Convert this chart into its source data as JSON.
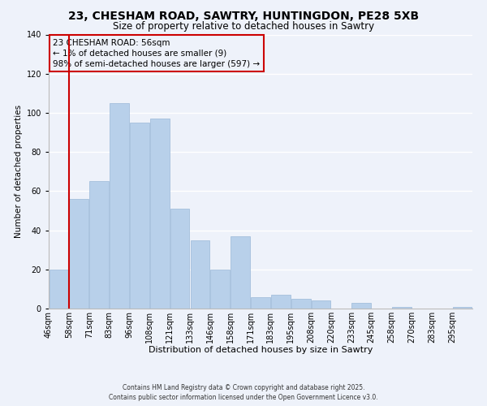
{
  "title1": "23, CHESHAM ROAD, SAWTRY, HUNTINGDON, PE28 5XB",
  "title2": "Size of property relative to detached houses in Sawtry",
  "xlabel": "Distribution of detached houses by size in Sawtry",
  "ylabel": "Number of detached properties",
  "categories": [
    "46sqm",
    "58sqm",
    "71sqm",
    "83sqm",
    "96sqm",
    "108sqm",
    "121sqm",
    "133sqm",
    "146sqm",
    "158sqm",
    "171sqm",
    "183sqm",
    "195sqm",
    "208sqm",
    "220sqm",
    "233sqm",
    "245sqm",
    "258sqm",
    "270sqm",
    "283sqm",
    "295sqm"
  ],
  "values": [
    20,
    56,
    65,
    105,
    95,
    97,
    51,
    35,
    20,
    37,
    6,
    7,
    5,
    4,
    0,
    3,
    0,
    1,
    0,
    0,
    1
  ],
  "bar_color": "#b8d0ea",
  "bar_edge_color": "#9ab8d8",
  "vline_x": 1.0,
  "vline_color": "#cc0000",
  "ylim": [
    0,
    140
  ],
  "yticks": [
    0,
    20,
    40,
    60,
    80,
    100,
    120,
    140
  ],
  "annotation_title": "23 CHESHAM ROAD: 56sqm",
  "annotation_line1": "← 1% of detached houses are smaller (9)",
  "annotation_line2": "98% of semi-detached houses are larger (597) →",
  "annotation_box_edgecolor": "#cc0000",
  "footer1": "Contains HM Land Registry data © Crown copyright and database right 2025.",
  "footer2": "Contains public sector information licensed under the Open Government Licence v3.0.",
  "background_color": "#eef2fa",
  "grid_color": "#ffffff",
  "title1_fontsize": 10,
  "title2_fontsize": 8.5,
  "xlabel_fontsize": 8,
  "ylabel_fontsize": 7.5,
  "tick_fontsize": 7,
  "annotation_fontsize": 7.5,
  "footer_fontsize": 5.5
}
